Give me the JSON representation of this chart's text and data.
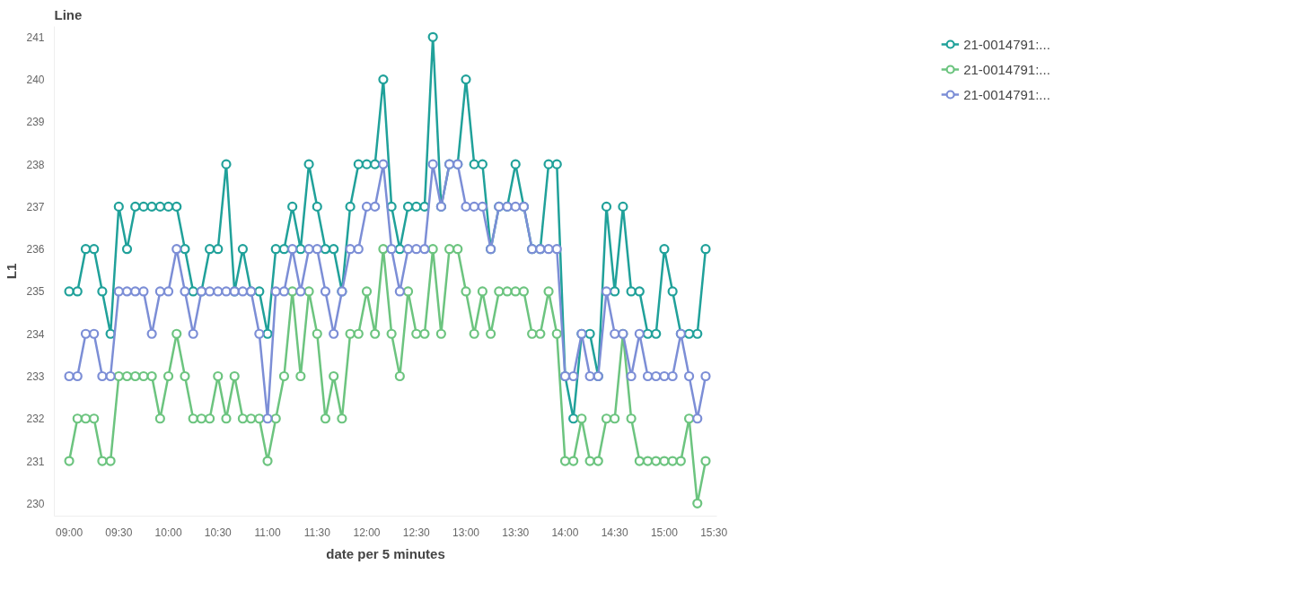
{
  "chart_data": {
    "type": "line",
    "title": "Line",
    "xlabel": "date per 5 minutes",
    "ylabel": "L1",
    "x": [
      9,
      9.0833,
      9.1667,
      9.25,
      9.3333,
      9.4167,
      9.5,
      9.5833,
      9.6667,
      9.75,
      9.8333,
      9.9167,
      10,
      10.0833,
      10.1667,
      10.25,
      10.3333,
      10.4167,
      10.5,
      10.5833,
      10.6667,
      10.75,
      10.8333,
      10.9167,
      11,
      11.0833,
      11.1667,
      11.25,
      11.3333,
      11.4167,
      11.5,
      11.5833,
      11.6667,
      11.75,
      11.8333,
      11.9167,
      12,
      12.0833,
      12.1667,
      12.25,
      12.3333,
      12.4167,
      12.5,
      12.5833,
      12.6667,
      12.75,
      12.8333,
      12.9167,
      13,
      13.0833,
      13.1667,
      13.25,
      13.3333,
      13.4167,
      13.5,
      13.5833,
      13.6667,
      13.75,
      13.8333,
      13.9167,
      14,
      14.0833,
      14.1667,
      14.25,
      14.3333,
      14.4167,
      14.5,
      14.5833,
      14.6667,
      14.75,
      14.8333,
      14.9167,
      15,
      15.0833,
      15.1667,
      15.25,
      15.3333,
      15.4167
    ],
    "series": [
      {
        "name": "21-0014791:...",
        "color": "#20a19a",
        "values": [
          235,
          235,
          236,
          236,
          235,
          234,
          237,
          236,
          237,
          237,
          237,
          237,
          237,
          237,
          236,
          235,
          235,
          236,
          236,
          238,
          235,
          236,
          235,
          235,
          234,
          236,
          236,
          237,
          236,
          238,
          237,
          236,
          236,
          235,
          237,
          238,
          238,
          238,
          240,
          237,
          236,
          237,
          237,
          237,
          241,
          237,
          238,
          238,
          240,
          238,
          238,
          236,
          237,
          237,
          238,
          237,
          236,
          236,
          238,
          238,
          233,
          232,
          234,
          234,
          233,
          237,
          235,
          237,
          235,
          235,
          234,
          234,
          236,
          235,
          234,
          234,
          234,
          236
        ]
      },
      {
        "name": "21-0014791:...",
        "color": "#6cc47f",
        "values": [
          231,
          232,
          232,
          232,
          231,
          231,
          233,
          233,
          233,
          233,
          233,
          232,
          233,
          234,
          233,
          232,
          232,
          232,
          233,
          232,
          233,
          232,
          232,
          232,
          231,
          232,
          233,
          235,
          233,
          235,
          234,
          232,
          233,
          232,
          234,
          234,
          235,
          234,
          236,
          234,
          233,
          235,
          234,
          234,
          236,
          234,
          236,
          236,
          235,
          234,
          235,
          234,
          235,
          235,
          235,
          235,
          234,
          234,
          235,
          234,
          231,
          231,
          232,
          231,
          231,
          232,
          232,
          234,
          232,
          231,
          231,
          231,
          231,
          231,
          231,
          232,
          230,
          231
        ]
      },
      {
        "name": "21-0014791:...",
        "color": "#7c8ed6",
        "values": [
          233,
          233,
          234,
          234,
          233,
          233,
          235,
          235,
          235,
          235,
          234,
          235,
          235,
          236,
          235,
          234,
          235,
          235,
          235,
          235,
          235,
          235,
          235,
          234,
          232,
          235,
          235,
          236,
          235,
          236,
          236,
          235,
          234,
          235,
          236,
          236,
          237,
          237,
          238,
          236,
          235,
          236,
          236,
          236,
          238,
          237,
          238,
          238,
          237,
          237,
          237,
          236,
          237,
          237,
          237,
          237,
          236,
          236,
          236,
          236,
          233,
          233,
          234,
          233,
          233,
          235,
          234,
          234,
          233,
          234,
          233,
          233,
          233,
          233,
          234,
          233,
          232,
          233
        ]
      }
    ],
    "xlim": [
      8.85,
      15.53
    ],
    "ylim": [
      229.7,
      241.25
    ],
    "xticks": [
      {
        "value": 9,
        "label": "09:00"
      },
      {
        "value": 9.5,
        "label": "09:30"
      },
      {
        "value": 10,
        "label": "10:00"
      },
      {
        "value": 10.5,
        "label": "10:30"
      },
      {
        "value": 11,
        "label": "11:00"
      },
      {
        "value": 11.5,
        "label": "11:30"
      },
      {
        "value": 12,
        "label": "12:00"
      },
      {
        "value": 12.5,
        "label": "12:30"
      },
      {
        "value": 13,
        "label": "13:00"
      },
      {
        "value": 13.5,
        "label": "13:30"
      },
      {
        "value": 14,
        "label": "14:00"
      },
      {
        "value": 14.5,
        "label": "14:30"
      },
      {
        "value": 15,
        "label": "15:00"
      },
      {
        "value": 15.5,
        "label": "15:30"
      }
    ],
    "yticks": [
      230,
      231,
      232,
      233,
      234,
      235,
      236,
      237,
      238,
      239,
      240,
      241
    ],
    "legend": "top right",
    "marker": "circle",
    "line_style": "solid"
  }
}
